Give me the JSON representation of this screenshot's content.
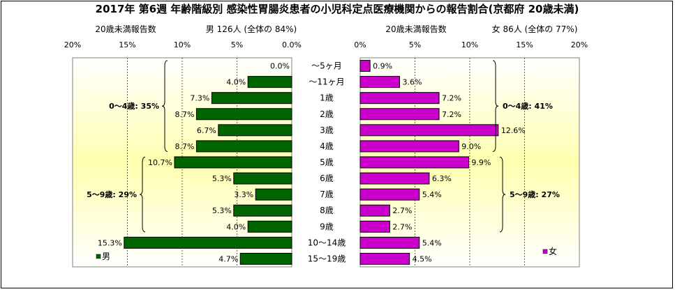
{
  "title": "2017年 第6週 年齢階級別 感染性胃腸炎患者の小児科定点医療機関からの報告割合(京都府 20歳未満)",
  "colors": {
    "male": "#006400",
    "female": "#cc00cc",
    "plot_gradient_edge": "#ffffff",
    "plot_gradient_center": "#ffffb0",
    "grid": "#000000"
  },
  "chart_data": [
    {
      "type": "bar",
      "orientation": "horizontal",
      "direction": "right-to-left",
      "header_left": "20歳未満報告数",
      "header_right": "男 126人 (全体の 84%)",
      "xlim": [
        0,
        20
      ],
      "ticks": [
        "20%",
        "15%",
        "10%",
        "5%",
        "0.0%"
      ],
      "tick_values": [
        20,
        15,
        10,
        5,
        0
      ],
      "categories": [
        "～5ヶ月",
        "～11ヶ月",
        "1歳",
        "2歳",
        "3歳",
        "4歳",
        "5歳",
        "6歳",
        "7歳",
        "8歳",
        "9歳",
        "10～14歳",
        "15～19歳"
      ],
      "values": [
        0.0,
        4.0,
        7.3,
        8.7,
        6.7,
        8.7,
        10.7,
        5.3,
        3.3,
        5.3,
        4.0,
        15.3,
        4.7
      ],
      "labels": [
        "0.0%",
        "4.0%",
        "7.3%",
        "8.7%",
        "6.7%",
        "8.7%",
        "10.7%",
        "5.3%",
        "3.3%",
        "5.3%",
        "4.0%",
        "15.3%",
        "4.7%"
      ],
      "legend": "男",
      "legend_position": "bottom-left",
      "groups": [
        {
          "label": "0～4歳: 35%",
          "from": 0,
          "to": 5
        },
        {
          "label": "5～9歳: 29%",
          "from": 6,
          "to": 10
        }
      ]
    },
    {
      "type": "bar",
      "orientation": "horizontal",
      "direction": "left-to-right",
      "header_left": "20歳未満報告数",
      "header_right": "女 86人 (全体の 77%)",
      "xlim": [
        0,
        20
      ],
      "ticks": [
        "0%",
        "5%",
        "10%",
        "15%",
        "20%"
      ],
      "tick_values": [
        0,
        5,
        10,
        15,
        20
      ],
      "categories": [
        "～5ヶ月",
        "～11ヶ月",
        "1歳",
        "2歳",
        "3歳",
        "4歳",
        "5歳",
        "6歳",
        "7歳",
        "8歳",
        "9歳",
        "10～14歳",
        "15～19歳"
      ],
      "values": [
        0.9,
        3.6,
        7.2,
        7.2,
        12.6,
        9.0,
        9.9,
        6.3,
        5.4,
        2.7,
        2.7,
        5.4,
        4.5
      ],
      "labels": [
        "0.9%",
        "3.6%",
        "7.2%",
        "7.2%",
        "12.6%",
        "9.0%",
        "9.9%",
        "6.3%",
        "5.4%",
        "2.7%",
        "2.7%",
        "5.4%",
        "4.5%"
      ],
      "legend": "女",
      "legend_position": "bottom-right",
      "groups": [
        {
          "label": "0～4歳: 41%",
          "from": 0,
          "to": 5
        },
        {
          "label": "5～9歳: 27%",
          "from": 6,
          "to": 10
        }
      ]
    }
  ]
}
